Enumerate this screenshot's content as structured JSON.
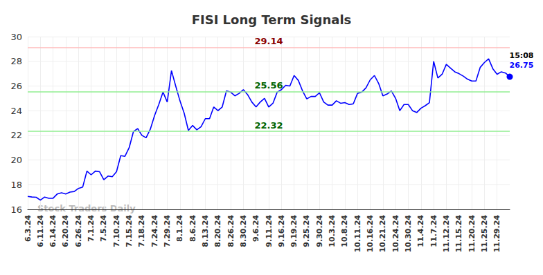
{
  "chart_data": {
    "type": "line",
    "title": "FISI Long Term Signals",
    "watermark": "Stock Traders Daily",
    "color": "#0000ff",
    "grid": true,
    "categories": [
      "6.3.24",
      null,
      null,
      "6.11.24",
      null,
      null,
      "6.14.24",
      null,
      null,
      "6.20.24",
      null,
      null,
      "6.26.24",
      null,
      null,
      "7.1.24",
      null,
      null,
      "7.5.24",
      null,
      null,
      "7.10.24",
      null,
      null,
      "7.15.24",
      null,
      null,
      "7.18.24",
      null,
      null,
      "7.24.24",
      null,
      null,
      "7.29.24",
      null,
      null,
      "8.1.24",
      null,
      null,
      "8.6.24",
      null,
      null,
      "8.13.24",
      null,
      null,
      "8.20.24",
      null,
      null,
      "8.26.24",
      null,
      null,
      "8.30.24",
      null,
      null,
      "9.6.24",
      null,
      null,
      "9.11.24",
      null,
      null,
      "9.16.24",
      null,
      null,
      "9.19.24",
      null,
      null,
      "9.25.24",
      null,
      null,
      "9.30.24",
      null,
      null,
      "10.3.24",
      null,
      null,
      "10.8.24",
      null,
      null,
      "10.11.24",
      null,
      null,
      "10.16.24",
      null,
      null,
      "10.21.24",
      null,
      null,
      "10.24.24",
      null,
      null,
      "10.30.24",
      null,
      null,
      "11.4.24",
      null,
      null,
      "11.7.24",
      null,
      null,
      "11.12.24",
      null,
      null,
      "11.15.24",
      null,
      null,
      "11.20.24",
      null,
      null,
      "11.25.24",
      null,
      null,
      "11.29.24",
      null,
      null,
      null
    ],
    "values": [
      17.05,
      17.0,
      16.98,
      16.75,
      17.0,
      16.9,
      16.9,
      17.25,
      17.35,
      17.25,
      17.4,
      17.45,
      17.7,
      17.8,
      19.1,
      18.8,
      19.1,
      19.05,
      18.4,
      18.7,
      18.65,
      19.05,
      20.35,
      20.3,
      21.0,
      22.3,
      22.55,
      22.0,
      21.8,
      22.5,
      23.6,
      24.5,
      25.5,
      24.7,
      27.25,
      26.0,
      24.8,
      23.8,
      22.4,
      22.8,
      22.45,
      22.7,
      23.35,
      23.35,
      24.3,
      24.0,
      24.3,
      25.6,
      25.5,
      25.2,
      25.4,
      25.7,
      25.3,
      24.7,
      24.3,
      24.7,
      25.0,
      24.3,
      24.6,
      25.5,
      25.7,
      26.05,
      26.0,
      26.85,
      26.45,
      25.6,
      24.95,
      25.15,
      25.15,
      25.45,
      24.7,
      24.45,
      24.45,
      24.8,
      24.6,
      24.65,
      24.5,
      24.55,
      25.4,
      25.5,
      25.85,
      26.5,
      26.85,
      26.2,
      25.2,
      25.35,
      25.6,
      25.0,
      24.0,
      24.5,
      24.5,
      24.0,
      23.85,
      24.2,
      24.4,
      24.65,
      28.0,
      26.65,
      26.95,
      27.75,
      27.45,
      27.15,
      27.0,
      26.8,
      26.55,
      26.4,
      26.4,
      27.5,
      27.9,
      28.2,
      27.4,
      26.95,
      27.15,
      27.05,
      26.75
    ],
    "ylim": [
      16,
      30
    ],
    "yticks": [
      16,
      18,
      20,
      22,
      24,
      26,
      28,
      30
    ],
    "annotations": [
      {
        "value": 29.14,
        "label": "29.14",
        "color": "#ffbbbb",
        "label_color": "#8b0000"
      },
      {
        "value": 25.56,
        "label": "25.56",
        "color": "#90ee90",
        "label_color": "#006400"
      },
      {
        "value": 22.32,
        "label": "22.32",
        "color": "#90ee90",
        "label_color": "#006400"
      }
    ],
    "end_label": {
      "time": "15:08",
      "value": 26.75
    }
  }
}
